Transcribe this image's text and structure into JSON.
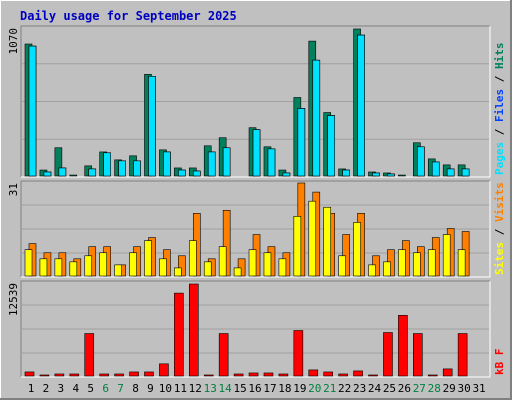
{
  "title": "Daily usage for September 2025",
  "categories": [
    "1",
    "2",
    "3",
    "4",
    "5",
    "6",
    "7",
    "8",
    "9",
    "10",
    "11",
    "12",
    "13",
    "14",
    "15",
    "16",
    "17",
    "18",
    "19",
    "20",
    "21",
    "22",
    "23",
    "24",
    "25",
    "26",
    "27",
    "28",
    "29",
    "30",
    "31"
  ],
  "weekend": [
    5,
    6,
    12,
    13,
    19,
    20,
    26,
    27
  ],
  "weekend_color": "#008040",
  "legend_separator": " / ",
  "chart_data": [
    {
      "type": "bar",
      "ylim": [
        0,
        1070
      ],
      "yticks": [
        1070
      ],
      "series": [
        {
          "name": "Hits",
          "color": "#00805c",
          "values": [
            955,
            50,
            210,
            14,
            80,
            180,
            123,
            152,
            737,
            195,
            65,
            65,
            224,
            282,
            7,
            354,
            217,
            50,
            571,
            976,
            463,
            58,
            1063,
            36,
            29,
            14,
            246,
            130,
            87,
            87,
            0
          ]
        },
        {
          "name": "Files",
          "color": "#0040ff",
          "values": [
            940,
            36,
            65,
            7,
            58,
            174,
            116,
            116,
            723,
            180,
            50,
            43,
            180,
            210,
            7,
            340,
            202,
            29,
            492,
            839,
            441,
            50,
            1019,
            29,
            22,
            7,
            217,
            108,
            58,
            58,
            0
          ]
        },
        {
          "name": "Pages",
          "color": "#00e0ff",
          "values": [
            940,
            36,
            65,
            7,
            58,
            174,
            116,
            116,
            723,
            180,
            50,
            43,
            180,
            210,
            7,
            340,
            202,
            29,
            492,
            839,
            441,
            50,
            1019,
            29,
            22,
            7,
            217,
            108,
            58,
            58,
            0
          ]
        }
      ]
    },
    {
      "type": "bar",
      "ylim": [
        0,
        31
      ],
      "yticks": [
        31
      ],
      "series": [
        {
          "name": "Visits",
          "color": "#ff8000",
          "values": [
            11,
            8,
            8,
            6,
            10,
            10,
            4,
            10,
            13,
            9,
            7,
            21,
            6,
            22,
            6,
            14,
            10,
            8,
            31,
            28,
            21,
            14,
            21,
            7,
            9,
            12,
            10,
            13,
            16,
            15,
            0
          ]
        },
        {
          "name": "Sites",
          "color": "#ffff00",
          "values": [
            9,
            6,
            6,
            5,
            7,
            8,
            4,
            8,
            12,
            6,
            3,
            12,
            5,
            10,
            3,
            9,
            8,
            6,
            20,
            25,
            23,
            7,
            18,
            4,
            5,
            9,
            8,
            9,
            14,
            9,
            0
          ]
        }
      ]
    },
    {
      "type": "bar",
      "ylim": [
        0,
        12539
      ],
      "yticks": [
        12539
      ],
      "series": [
        {
          "name": "kB F",
          "color": "#ff0000",
          "values": [
            674,
            270,
            405,
            405,
            5797,
            405,
            405,
            674,
            674,
            1753,
            11190,
            12404,
            270,
            5797,
            405,
            539,
            539,
            405,
            6202,
            944,
            674,
            405,
            809,
            270,
            5932,
            8225,
            5797,
            270,
            1079,
            5797,
            0
          ]
        }
      ]
    }
  ]
}
